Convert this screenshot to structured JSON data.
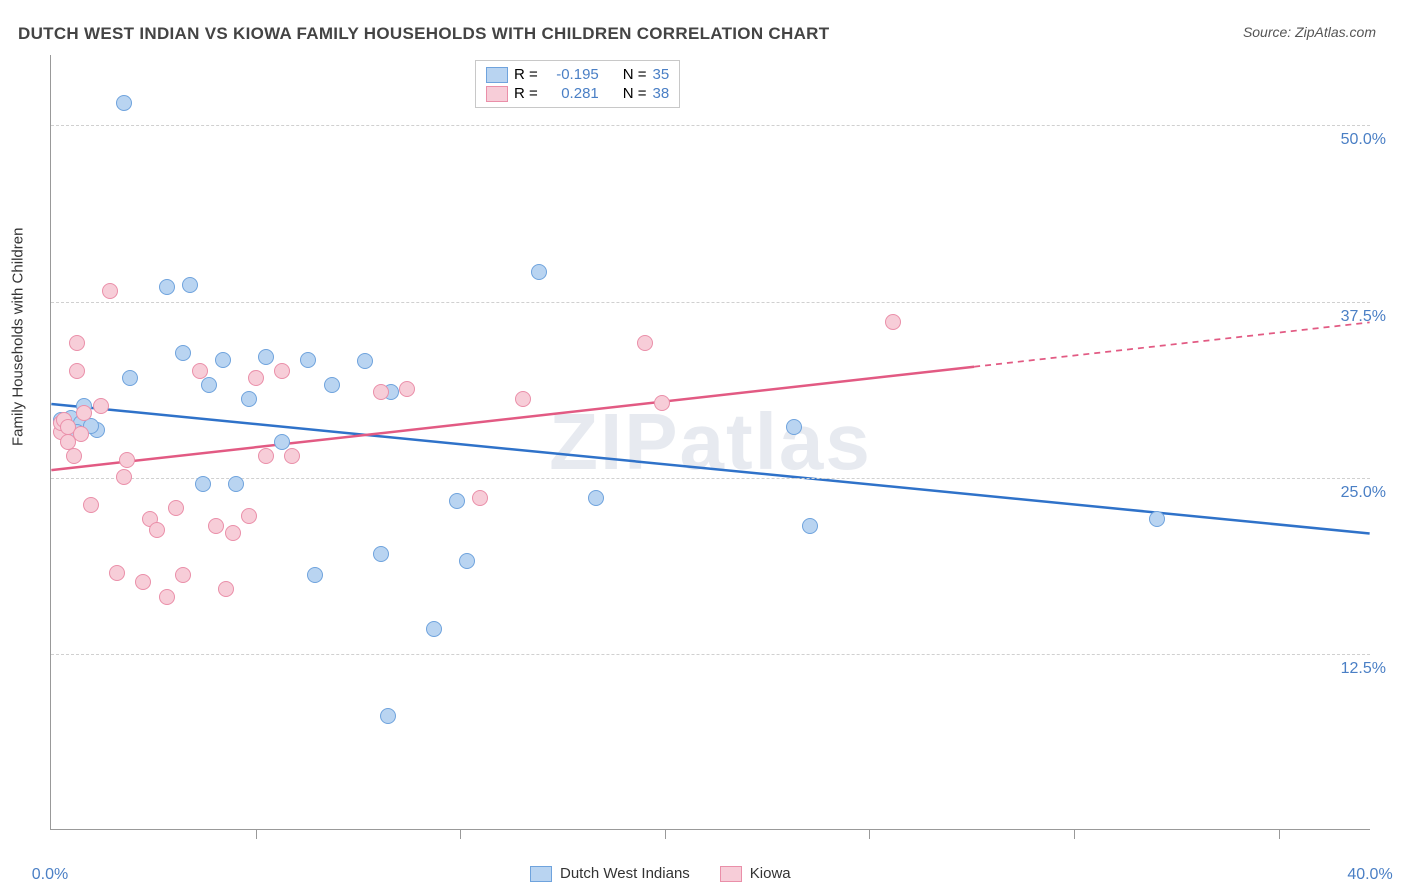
{
  "title": "DUTCH WEST INDIAN VS KIOWA FAMILY HOUSEHOLDS WITH CHILDREN CORRELATION CHART",
  "source": "Source: ZipAtlas.com",
  "ylabel": "Family Households with Children",
  "watermark": "ZIPatlas",
  "chart": {
    "type": "scatter",
    "background_color": "#ffffff",
    "grid_color": "#d0d0d0",
    "axis_color": "#999999",
    "label_color": "#4a7fc5",
    "point_radius": 8,
    "xrange": [
      0,
      40
    ],
    "yrange": [
      0,
      55
    ],
    "x_ticks": [
      0,
      40
    ],
    "x_tick_labels": [
      "0.0%",
      "40.0%"
    ],
    "x_minor_ticks": [
      6.2,
      12.4,
      18.6,
      24.8,
      31.0,
      37.2
    ],
    "y_grid": [
      12.5,
      25.0,
      37.5,
      50.0
    ],
    "y_grid_labels": [
      "12.5%",
      "25.0%",
      "37.5%",
      "50.0%"
    ]
  },
  "series": [
    {
      "key": "dutch",
      "name": "Dutch West Indians",
      "fill": "#b9d4f1",
      "stroke": "#6fa3dd",
      "line_color": "#2f72c9",
      "line_width": 2.5,
      "R": "-0.195",
      "N": "35",
      "regression": {
        "x1": 0,
        "y1": 30.2,
        "x2": 40,
        "y2": 21.0,
        "solid_until_x": 40
      },
      "points": [
        [
          0.3,
          29.0
        ],
        [
          0.6,
          29.2
        ],
        [
          0.9,
          28.8
        ],
        [
          0.5,
          28.0
        ],
        [
          1.0,
          30.0
        ],
        [
          1.4,
          28.3
        ],
        [
          2.2,
          51.5
        ],
        [
          2.4,
          32.0
        ],
        [
          3.5,
          38.5
        ],
        [
          4.0,
          33.8
        ],
        [
          4.2,
          38.6
        ],
        [
          4.6,
          24.5
        ],
        [
          4.8,
          31.5
        ],
        [
          5.2,
          33.3
        ],
        [
          5.6,
          24.5
        ],
        [
          6.0,
          30.5
        ],
        [
          6.5,
          33.5
        ],
        [
          7.0,
          27.5
        ],
        [
          7.8,
          33.3
        ],
        [
          8.0,
          18.0
        ],
        [
          8.5,
          31.5
        ],
        [
          9.5,
          33.2
        ],
        [
          10.0,
          19.5
        ],
        [
          10.2,
          8.0
        ],
        [
          10.3,
          31.0
        ],
        [
          11.6,
          14.2
        ],
        [
          12.3,
          23.3
        ],
        [
          12.6,
          19.0
        ],
        [
          14.8,
          39.5
        ],
        [
          16.5,
          23.5
        ],
        [
          22.5,
          28.5
        ],
        [
          23.0,
          21.5
        ],
        [
          33.5,
          22.0
        ],
        [
          1.2,
          28.6
        ],
        [
          0.8,
          28.2
        ]
      ]
    },
    {
      "key": "kiowa",
      "name": "Kiowa",
      "fill": "#f7cdd8",
      "stroke": "#ea8fa9",
      "line_color": "#e25a83",
      "line_width": 2.5,
      "R": "0.281",
      "N": "38",
      "regression": {
        "x1": 0,
        "y1": 25.5,
        "x2": 40,
        "y2": 36.0,
        "solid_until_x": 28
      },
      "points": [
        [
          0.3,
          28.2
        ],
        [
          0.3,
          28.8
        ],
        [
          0.4,
          29.0
        ],
        [
          0.5,
          28.5
        ],
        [
          0.7,
          26.5
        ],
        [
          0.8,
          34.5
        ],
        [
          0.8,
          32.5
        ],
        [
          1.2,
          23.0
        ],
        [
          1.5,
          30.0
        ],
        [
          1.8,
          38.2
        ],
        [
          2.0,
          18.2
        ],
        [
          2.2,
          25.0
        ],
        [
          2.3,
          26.2
        ],
        [
          2.8,
          17.5
        ],
        [
          3.0,
          22.0
        ],
        [
          3.2,
          21.2
        ],
        [
          3.5,
          16.5
        ],
        [
          3.8,
          22.8
        ],
        [
          4.0,
          18.0
        ],
        [
          4.5,
          32.5
        ],
        [
          5.0,
          21.5
        ],
        [
          5.3,
          17.0
        ],
        [
          5.5,
          21.0
        ],
        [
          6.0,
          22.2
        ],
        [
          6.2,
          32.0
        ],
        [
          6.5,
          26.5
        ],
        [
          7.0,
          32.5
        ],
        [
          7.3,
          26.5
        ],
        [
          10.0,
          31.0
        ],
        [
          10.8,
          31.2
        ],
        [
          13.0,
          23.5
        ],
        [
          14.3,
          30.5
        ],
        [
          18.0,
          34.5
        ],
        [
          18.5,
          30.2
        ],
        [
          25.5,
          36.0
        ],
        [
          0.5,
          27.5
        ],
        [
          0.9,
          28.0
        ],
        [
          1.0,
          29.5
        ]
      ]
    }
  ],
  "legend_top": {
    "R_label": "R =",
    "N_label": "N ="
  },
  "legend_bottom_labels": [
    "Dutch West Indians",
    "Kiowa"
  ]
}
